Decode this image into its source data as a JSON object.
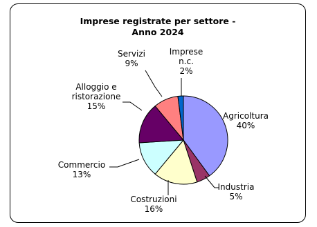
{
  "chart_data": {
    "type": "pie",
    "title_line1": "Imprese registrate per settore -",
    "title_line2": "Anno 2024",
    "slices": [
      {
        "label": "Agricoltura",
        "percent_label": "40%",
        "value": 40,
        "color": "#9999ff"
      },
      {
        "label": "Industria",
        "percent_label": "5%",
        "value": 5,
        "color": "#993366"
      },
      {
        "label": "Costruzioni",
        "percent_label": "16%",
        "value": 16,
        "color": "#ffffcc"
      },
      {
        "label": "Commercio",
        "percent_label": "13%",
        "value": 13,
        "color": "#ccffff"
      },
      {
        "label": "Alloggio e ristorazione",
        "label_lines": [
          "Alloggio e",
          "ristorazione"
        ],
        "percent_label": "15%",
        "value": 15,
        "color": "#660066"
      },
      {
        "label": "Servizi",
        "percent_label": "9%",
        "value": 9,
        "color": "#ff8080"
      },
      {
        "label": "Imprese n.c.",
        "label_lines": [
          "Imprese",
          "n.c."
        ],
        "percent_label": "2%",
        "value": 2,
        "color": "#0066cc"
      }
    ]
  }
}
